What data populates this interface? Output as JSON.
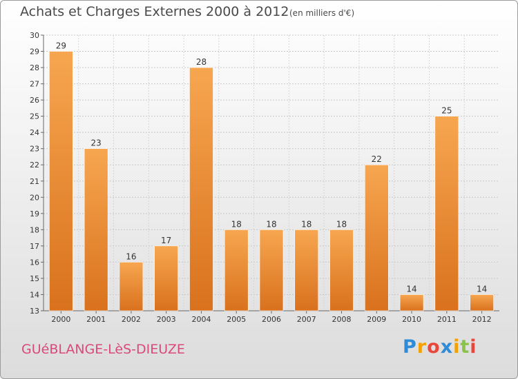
{
  "header": {
    "title": "Achats et Charges Externes 2000 à 2012",
    "subtitle": "(en milliers d'€)"
  },
  "footer": {
    "commune": "GUéBLANGE-LèS-DIEUZE",
    "logo_letters": [
      "P",
      "r",
      "o",
      "x",
      "i",
      "t",
      "i"
    ]
  },
  "colors": {
    "bar_light": "#f7a650",
    "bar_dark": "#d9711d",
    "commune_text": "#d94a7a",
    "logo": [
      "#2e8bd8",
      "#f2a100",
      "#e8483c",
      "#2e8bd8",
      "#f2a100",
      "#8bc34a",
      "#e8483c"
    ]
  },
  "chart_data": {
    "type": "bar",
    "title": "Achats et Charges Externes 2000 à 2012",
    "subtitle": "(en milliers d'€)",
    "categories": [
      "2000",
      "2001",
      "2002",
      "2003",
      "2004",
      "2005",
      "2006",
      "2007",
      "2008",
      "2009",
      "2010",
      "2011",
      "2012"
    ],
    "values": [
      29,
      23,
      16,
      17,
      28,
      18,
      18,
      18,
      18,
      22,
      14,
      25,
      14
    ],
    "ylim": [
      13,
      30
    ],
    "yticks": [
      13,
      14,
      15,
      16,
      17,
      18,
      19,
      20,
      21,
      22,
      23,
      24,
      25,
      26,
      27,
      28,
      29,
      30
    ],
    "grid": true,
    "xlabel": "",
    "ylabel": ""
  }
}
